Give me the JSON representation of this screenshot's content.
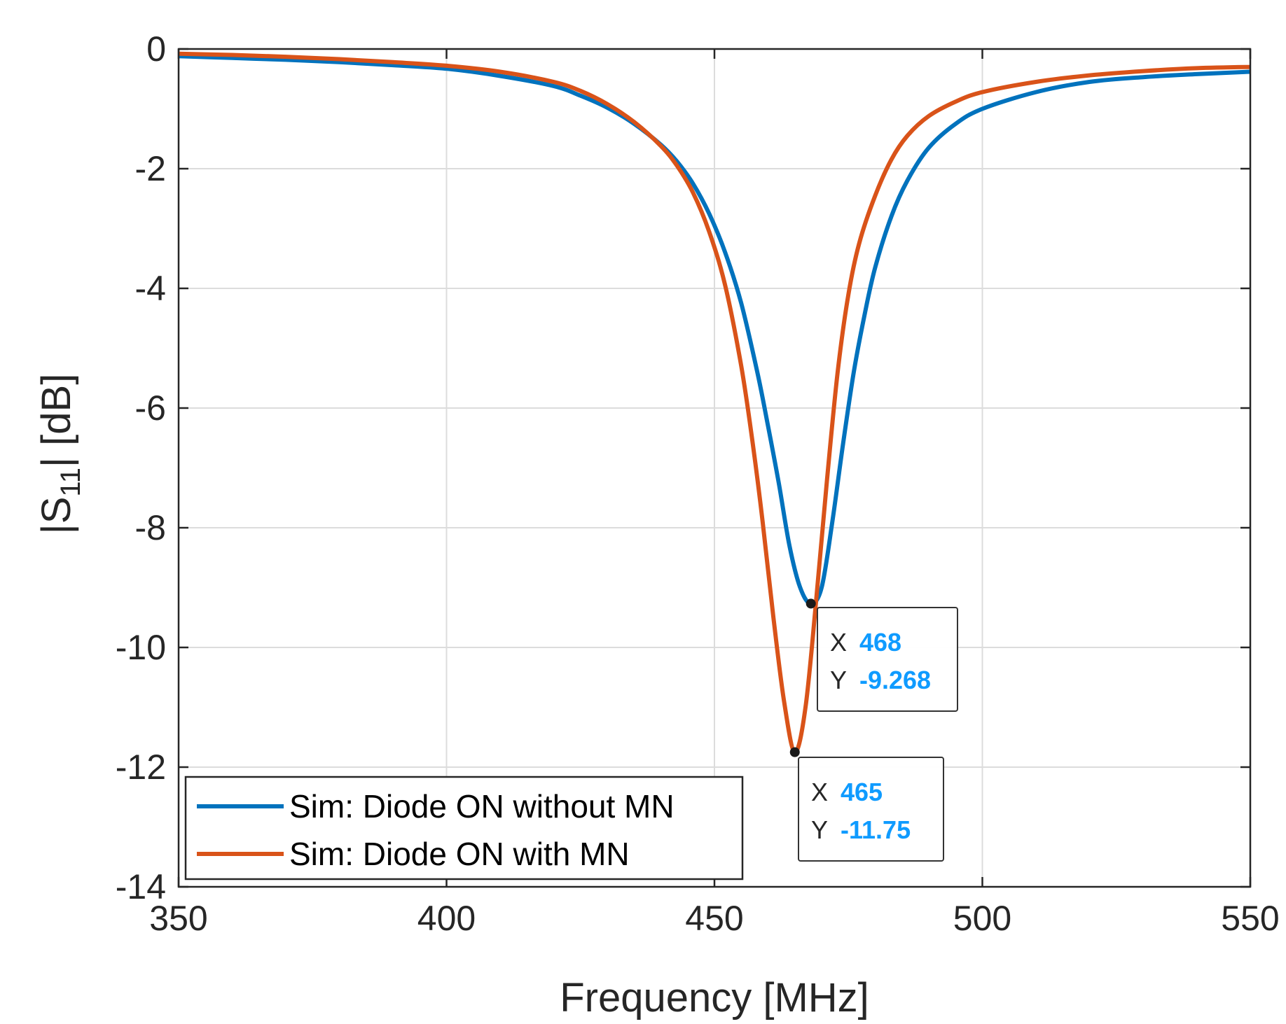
{
  "chart_data": {
    "type": "line",
    "xlabel": "Frequency [MHz]",
    "ylabel": {
      "prefix": "|S",
      "sub": "11",
      "suffix": "| [dB]"
    },
    "xlim": [
      350,
      550
    ],
    "ylim": [
      -14,
      0
    ],
    "grid": true,
    "xticks": [
      350,
      400,
      450,
      500,
      550
    ],
    "xtick_labels": [
      "350",
      "400",
      "450",
      "500",
      "550"
    ],
    "yticks": [
      0,
      -2,
      -4,
      -6,
      -8,
      -10,
      -12,
      -14
    ],
    "ytick_labels": [
      "0",
      "-2",
      "-4",
      "-6",
      "-8",
      "-10",
      "-12",
      "-14"
    ],
    "legend_position": "bottom-left",
    "series": [
      {
        "name": "Sim: Diode ON without MN",
        "color": "#0072BD",
        "x": [
          350,
          360,
          370,
          380,
          390,
          400,
          410,
          420,
          425,
          430,
          435,
          440,
          443,
          446,
          449,
          452,
          455,
          458,
          460,
          462,
          464,
          466,
          468,
          470,
          472,
          474,
          476,
          478,
          480,
          483,
          486,
          490,
          495,
          500,
          510,
          520,
          530,
          540,
          550
        ],
        "y": [
          -0.12,
          -0.15,
          -0.18,
          -0.22,
          -0.27,
          -0.33,
          -0.45,
          -0.62,
          -0.78,
          -0.98,
          -1.25,
          -1.6,
          -1.88,
          -2.25,
          -2.75,
          -3.4,
          -4.25,
          -5.4,
          -6.3,
          -7.25,
          -8.3,
          -9.0,
          -9.268,
          -9.0,
          -7.9,
          -6.6,
          -5.4,
          -4.45,
          -3.65,
          -2.8,
          -2.2,
          -1.65,
          -1.25,
          -1.0,
          -0.72,
          -0.55,
          -0.47,
          -0.42,
          -0.38
        ]
      },
      {
        "name": "Sim: Diode ON with MN",
        "color": "#D95319",
        "x": [
          350,
          360,
          370,
          380,
          390,
          400,
          410,
          420,
          425,
          430,
          435,
          440,
          443,
          446,
          449,
          452,
          455,
          457,
          459,
          461,
          463,
          465,
          467,
          469,
          471,
          473,
          475,
          477,
          480,
          483,
          486,
          490,
          495,
          500,
          510,
          520,
          530,
          540,
          550
        ],
        "y": [
          -0.08,
          -0.1,
          -0.13,
          -0.17,
          -0.22,
          -0.28,
          -0.38,
          -0.55,
          -0.7,
          -0.92,
          -1.22,
          -1.62,
          -1.95,
          -2.4,
          -3.05,
          -3.95,
          -5.3,
          -6.5,
          -7.9,
          -9.5,
          -10.9,
          -11.75,
          -11.0,
          -9.2,
          -7.2,
          -5.4,
          -4.1,
          -3.25,
          -2.45,
          -1.85,
          -1.45,
          -1.12,
          -0.88,
          -0.72,
          -0.55,
          -0.44,
          -0.37,
          -0.32,
          -0.3
        ]
      }
    ],
    "datatips": [
      {
        "series": 0,
        "x_key": "X",
        "y_key": "Y",
        "x_text": "468",
        "y_text": "-9.268",
        "x": 468,
        "y": -9.268
      },
      {
        "series": 1,
        "x_key": "X",
        "y_key": "Y",
        "x_text": "465",
        "y_text": "-11.75",
        "x": 465,
        "y": -11.75
      }
    ],
    "datatip_value_color": "#0F9BFF"
  }
}
